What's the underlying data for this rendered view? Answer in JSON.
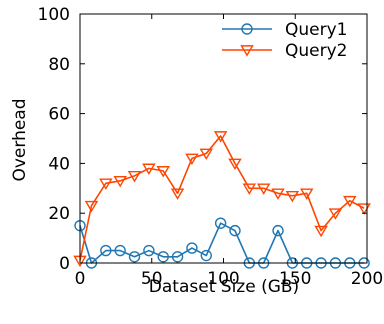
{
  "chart_data": {
    "type": "line",
    "title": "",
    "xlabel": "Dataset Size (GB)",
    "ylabel": "Overhead",
    "xlim": [
      0,
      200
    ],
    "ylim": [
      0,
      100
    ],
    "xticks": [
      0,
      50,
      100,
      150,
      200
    ],
    "yticks": [
      0,
      20,
      40,
      60,
      80,
      100
    ],
    "grid": false,
    "legend_position": "top-right",
    "series": [
      {
        "name": "Query1",
        "color": "#1f77b4",
        "marker": "circle",
        "x": [
          0,
          8,
          18,
          28,
          38,
          48,
          58,
          68,
          78,
          88,
          98,
          108,
          118,
          128,
          138,
          148,
          158,
          168,
          178,
          188,
          198
        ],
        "values": [
          15,
          0,
          5,
          5,
          2.5,
          5,
          2.5,
          2.5,
          6,
          3,
          16,
          13,
          0,
          0,
          13,
          0,
          0,
          0,
          0,
          0,
          0
        ]
      },
      {
        "name": "Query2",
        "color": "#ff4500",
        "marker": "triangle-down",
        "x": [
          0,
          8,
          18,
          28,
          38,
          48,
          58,
          68,
          78,
          88,
          98,
          108,
          118,
          128,
          138,
          148,
          158,
          168,
          178,
          188,
          198
        ],
        "values": [
          1,
          23,
          32,
          33,
          35,
          38,
          37,
          28,
          42,
          44,
          51,
          40,
          30,
          30,
          28,
          27,
          28,
          13,
          20,
          25,
          22
        ]
      }
    ]
  }
}
